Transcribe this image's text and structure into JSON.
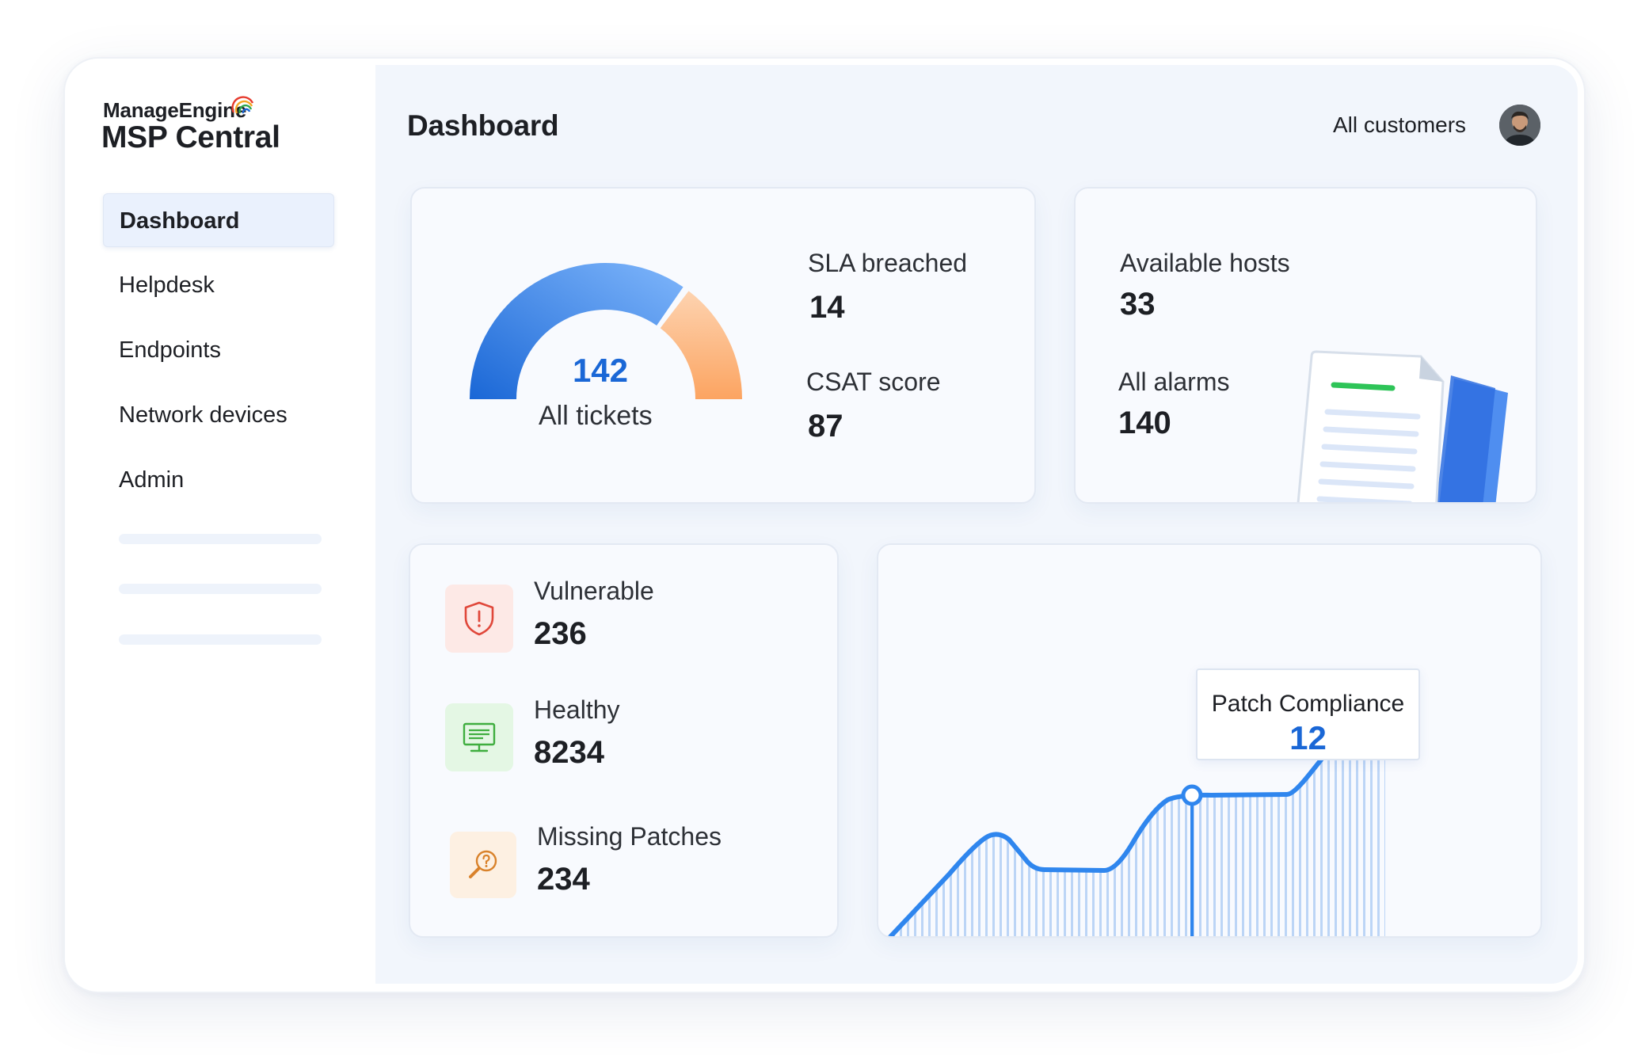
{
  "app": {
    "brand_top": "ManageEngine",
    "brand_name": "MSP Central"
  },
  "sidebar": {
    "items": [
      {
        "label": "Dashboard",
        "active": true
      },
      {
        "label": "Helpdesk"
      },
      {
        "label": "Endpoints"
      },
      {
        "label": "Network devices"
      },
      {
        "label": "Admin"
      }
    ]
  },
  "header": {
    "title": "Dashboard",
    "customer_filter": "All customers",
    "avatar_icon": "user-avatar"
  },
  "tickets_card": {
    "total_value": "142",
    "total_label": "All tickets",
    "gauge_blue_fraction": 0.7,
    "sla_label": "SLA breached",
    "sla_value": "14",
    "csat_label": "CSAT score",
    "csat_value": "87"
  },
  "hosts_card": {
    "hosts_label": "Available hosts",
    "hosts_value": "33",
    "alarms_label": "All alarms",
    "alarms_value": "140",
    "illustration_icon": "document-icon"
  },
  "status_card": {
    "items": [
      {
        "label": "Vulnerable",
        "value": "236",
        "icon": "shield-alert-icon",
        "color": "#e0483b"
      },
      {
        "label": "Healthy",
        "value": "8234",
        "icon": "monitor-icon",
        "color": "#3fae3f"
      },
      {
        "label": "Missing Patches",
        "value": "234",
        "icon": "search-question-icon",
        "color": "#d9822b"
      }
    ]
  },
  "patch_card": {
    "tooltip_label": "Patch Compliance",
    "tooltip_value": "12"
  },
  "colors": {
    "accent": "#1a67d6",
    "line": "#2f86ee",
    "gauge_orange": "#fdb27a"
  }
}
